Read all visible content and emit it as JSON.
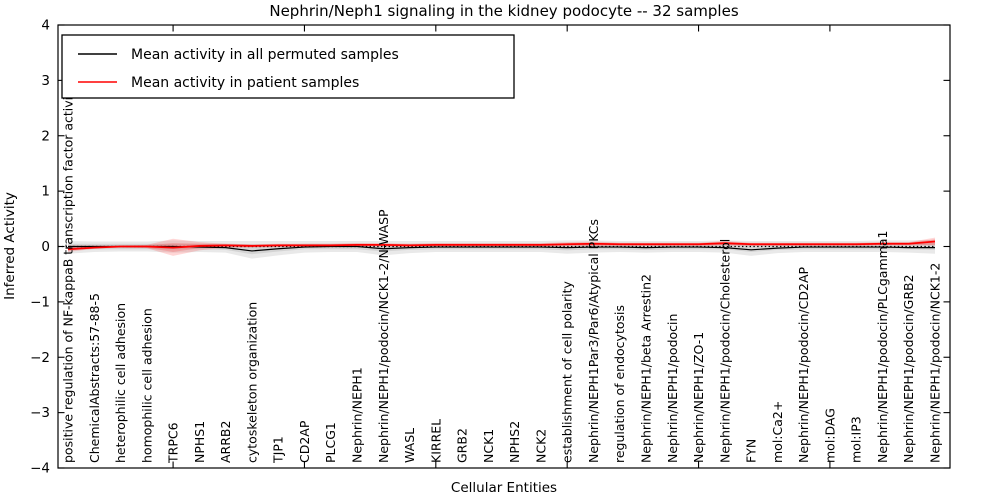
{
  "chart_data": {
    "type": "line",
    "title": "Nephrin/Neph1 signaling in the kidney podocyte -- 32 samples",
    "xlabel": "Cellular Entities",
    "ylabel": "Inferred Activity",
    "ylim": [
      -4,
      4
    ],
    "y_tick_values": [
      4,
      3,
      2,
      1,
      0,
      -1,
      -2,
      -3,
      -4
    ],
    "y_tick_labels": [
      "4",
      "3",
      "2",
      "1",
      "0",
      "−1",
      "−2",
      "−3",
      "−4"
    ],
    "x_tick_indices": [
      4,
      9,
      14,
      19,
      24,
      29
    ],
    "grid": false,
    "legend_position": "upper left",
    "zero_line": {
      "style": "dotted",
      "color": "#000000",
      "y": 0
    },
    "legend": [
      {
        "label": "Mean activity in all permuted samples",
        "color": "#000000"
      },
      {
        "label": "Mean activity in patient samples",
        "color": "#ff0000"
      }
    ],
    "categories": [
      "positive regulation of NF-kappaB transcription factor activity",
      "ChemicalAbstracts:57-88-5",
      "heterophilic cell adhesion",
      "homophilic cell adhesion",
      "TRPC6",
      "NPHS1",
      "ARRB2",
      "cytoskeleton organization",
      "TJP1",
      "CD2AP",
      "PLCG1",
      "Nephrin/NEPH1",
      "Nephrin/NEPH1/podocin/NCK1-2/N-WASP",
      "WASL",
      "KIRREL",
      "GRB2",
      "NCK1",
      "NPHS2",
      "NCK2",
      "establishment of cell polarity",
      "Nephrin/NEPH1Par3/Par6/Atypical PKCs",
      "regulation of endocytosis",
      "Nephrin/NEPH1/beta Arrestin2",
      "Nephrin/NEPH1/podocin",
      "Nephrin/NEPH1/ZO-1",
      "Nephrin/NEPH1/podocin/Cholesterol",
      "FYN",
      "mol:Ca2+",
      "Nephrin/NEPH1/podocin/CD2AP",
      "mol:DAG",
      "mol:IP3",
      "Nephrin/NEPH1/podocin/PLCgamma1",
      "Nephrin/NEPH1/podocin/GRB2",
      "Nephrin/NEPH1/podocin/NCK1-2"
    ],
    "series": [
      {
        "name": "Mean activity in all permuted samples",
        "color": "#000000",
        "band_color": "rgba(0,0,0,0.085)",
        "values": [
          0.0,
          0.0,
          0.0,
          0.0,
          0.0,
          -0.01,
          -0.02,
          -0.08,
          -0.04,
          -0.01,
          0.0,
          0.0,
          -0.04,
          -0.02,
          -0.01,
          -0.01,
          -0.01,
          -0.01,
          -0.01,
          -0.02,
          -0.01,
          -0.01,
          -0.02,
          -0.01,
          -0.01,
          -0.02,
          -0.06,
          -0.03,
          -0.01,
          -0.01,
          -0.01,
          -0.01,
          -0.02,
          -0.02
        ],
        "band_outer_lo": [
          -0.13,
          -0.1,
          -0.09,
          -0.09,
          -0.11,
          -0.1,
          -0.11,
          -0.22,
          -0.16,
          -0.11,
          -0.1,
          -0.1,
          -0.16,
          -0.12,
          -0.1,
          -0.1,
          -0.1,
          -0.1,
          -0.1,
          -0.13,
          -0.11,
          -0.1,
          -0.11,
          -0.1,
          -0.1,
          -0.11,
          -0.17,
          -0.12,
          -0.1,
          -0.1,
          -0.1,
          -0.1,
          -0.11,
          -0.13
        ],
        "band_outer_hi": [
          0.1,
          0.09,
          0.09,
          0.09,
          0.11,
          0.1,
          0.1,
          0.1,
          0.1,
          0.1,
          0.1,
          0.1,
          0.1,
          0.1,
          0.1,
          0.1,
          0.1,
          0.1,
          0.1,
          0.11,
          0.11,
          0.1,
          0.1,
          0.1,
          0.1,
          0.11,
          0.1,
          0.1,
          0.1,
          0.1,
          0.1,
          0.11,
          0.11,
          0.12
        ],
        "band_inner_lo": [
          -0.06,
          -0.05,
          -0.05,
          -0.05,
          -0.05,
          -0.05,
          -0.06,
          -0.14,
          -0.09,
          -0.05,
          -0.05,
          -0.05,
          -0.09,
          -0.06,
          -0.05,
          -0.05,
          -0.05,
          -0.05,
          -0.05,
          -0.07,
          -0.05,
          -0.05,
          -0.06,
          -0.05,
          -0.05,
          -0.05,
          -0.1,
          -0.06,
          -0.05,
          -0.05,
          -0.05,
          -0.05,
          -0.05,
          -0.06
        ],
        "band_inner_hi": [
          0.05,
          0.05,
          0.05,
          0.05,
          0.05,
          0.05,
          0.05,
          0.04,
          0.04,
          0.05,
          0.05,
          0.05,
          0.04,
          0.05,
          0.05,
          0.05,
          0.05,
          0.05,
          0.05,
          0.05,
          0.05,
          0.05,
          0.05,
          0.05,
          0.05,
          0.05,
          0.04,
          0.05,
          0.05,
          0.05,
          0.05,
          0.05,
          0.06,
          0.06
        ]
      },
      {
        "name": "Mean activity in patient samples",
        "color": "#ff0000",
        "band_color": "rgba(255,0,0,0.16)",
        "values": [
          -0.05,
          -0.02,
          0.0,
          0.0,
          -0.02,
          0.01,
          0.02,
          0.01,
          0.02,
          0.02,
          0.02,
          0.03,
          0.03,
          0.02,
          0.03,
          0.03,
          0.03,
          0.03,
          0.03,
          0.04,
          0.05,
          0.04,
          0.04,
          0.04,
          0.04,
          0.06,
          0.04,
          0.04,
          0.04,
          0.04,
          0.04,
          0.05,
          0.05,
          0.09
        ],
        "band_outer_lo": [
          -0.1,
          -0.04,
          -0.02,
          -0.03,
          -0.17,
          -0.07,
          -0.02,
          -0.02,
          -0.01,
          -0.01,
          -0.01,
          0.0,
          0.0,
          -0.01,
          0.0,
          0.0,
          0.0,
          0.0,
          0.0,
          0.0,
          0.01,
          0.01,
          0.01,
          0.01,
          0.01,
          0.02,
          0.01,
          0.01,
          0.01,
          0.01,
          0.01,
          0.02,
          0.02,
          0.02
        ],
        "band_outer_hi": [
          0.02,
          0.02,
          0.02,
          0.03,
          0.14,
          0.08,
          0.05,
          0.04,
          0.05,
          0.05,
          0.05,
          0.06,
          0.06,
          0.05,
          0.06,
          0.06,
          0.06,
          0.06,
          0.06,
          0.08,
          0.09,
          0.07,
          0.07,
          0.07,
          0.07,
          0.1,
          0.07,
          0.07,
          0.07,
          0.07,
          0.07,
          0.08,
          0.08,
          0.16
        ],
        "band_inner_lo": [
          -0.08,
          -0.03,
          -0.01,
          -0.02,
          -0.1,
          -0.03,
          0.0,
          -0.01,
          0.0,
          0.0,
          0.0,
          0.01,
          0.01,
          0.0,
          0.01,
          0.01,
          0.01,
          0.01,
          0.01,
          0.02,
          0.02,
          0.02,
          0.02,
          0.02,
          0.02,
          0.03,
          0.02,
          0.02,
          0.02,
          0.02,
          0.02,
          0.03,
          0.03,
          0.03
        ],
        "band_inner_hi": [
          -0.01,
          0.0,
          0.01,
          0.02,
          0.06,
          0.05,
          0.04,
          0.03,
          0.04,
          0.04,
          0.04,
          0.05,
          0.05,
          0.04,
          0.05,
          0.05,
          0.05,
          0.05,
          0.05,
          0.06,
          0.07,
          0.06,
          0.06,
          0.06,
          0.06,
          0.08,
          0.06,
          0.06,
          0.06,
          0.06,
          0.06,
          0.07,
          0.07,
          0.13
        ]
      }
    ]
  }
}
